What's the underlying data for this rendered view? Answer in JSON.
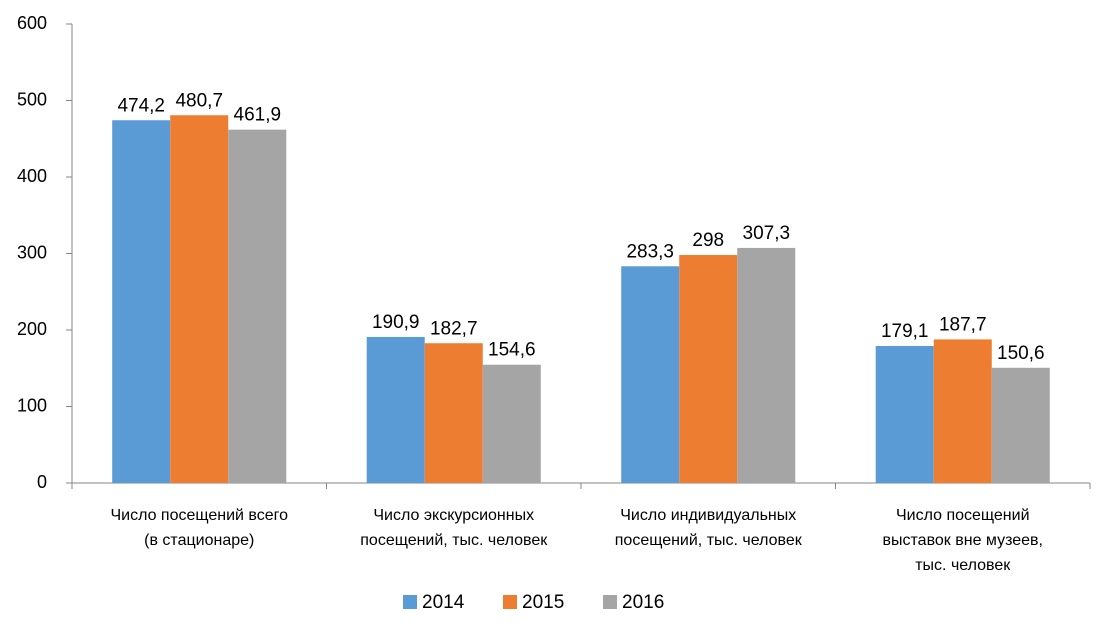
{
  "chart_data": {
    "type": "bar",
    "categories": [
      "Число посещений всего\n(в стационаре)",
      "Число экскурсионных\nпосещений, тыс. человек",
      "Число индивидуальных\nпосещений, тыс. человек",
      "Число посещений\nвыставок вне музеев,\nтыс. человек"
    ],
    "series": [
      {
        "name": "2014",
        "color": "#5b9bd5",
        "values": [
          474.2,
          190.9,
          283.3,
          179.1
        ],
        "value_labels": [
          "474,2",
          "190,9",
          "283,3",
          "179,1"
        ]
      },
      {
        "name": "2015",
        "color": "#ed7d31",
        "values": [
          480.7,
          182.7,
          298,
          187.7
        ],
        "value_labels": [
          "480,7",
          "182,7",
          "298",
          "187,7"
        ]
      },
      {
        "name": "2016",
        "color": "#a5a5a5",
        "values": [
          461.9,
          154.6,
          307.3,
          150.6
        ],
        "value_labels": [
          "461,9",
          "154,6",
          "307,3",
          "150,6"
        ]
      }
    ],
    "ylim": [
      0,
      600
    ],
    "yticks": [
      0,
      100,
      200,
      300,
      400,
      500,
      600
    ],
    "grid": false,
    "legend": "bottom"
  }
}
